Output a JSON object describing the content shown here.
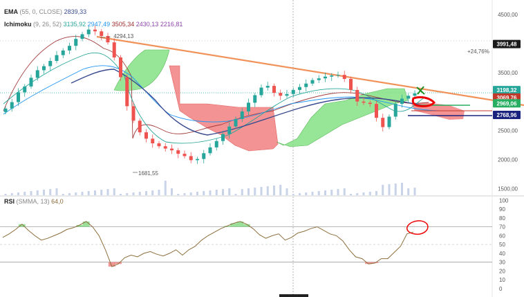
{
  "indicators": {
    "ema": {
      "name": "EMA",
      "params": "(55, 0, CLOSE)",
      "value": "2839,33",
      "color": "#3a4c8f"
    },
    "ichimoku": {
      "name": "Ichimoku",
      "params": "(9, 26, 52)",
      "values": [
        {
          "text": "3135,92",
          "color": "#26a69a"
        },
        {
          "text": "2947,49",
          "color": "#2196f3"
        },
        {
          "text": "3505,34",
          "color": "#9c2b2b"
        },
        {
          "text": "2430,13",
          "color": "#8e44ad"
        },
        {
          "text": "2216,81",
          "color": "#8e44ad"
        }
      ]
    },
    "rsi": {
      "name": "RSI",
      "params": "(SMMA, 13)",
      "value": "64,0",
      "color": "#8d6e3c"
    }
  },
  "price_axis": {
    "ticks": [
      "4500,00",
      "4000,00",
      "3500,00",
      "3000,00",
      "2500,00",
      "2000,00",
      "1500,00"
    ]
  },
  "price_tags": [
    {
      "text": "3991,48",
      "bg": "#1a1a1a"
    },
    {
      "text": "3198,32",
      "bg": "#26a69a"
    },
    {
      "text": "3069,76",
      "bg": "#c0392b"
    },
    {
      "text": "2969,06",
      "bg": "#27ae60"
    },
    {
      "text": "2768,96",
      "bg": "#1a237e"
    }
  ],
  "annotations": {
    "high": "4294,13",
    "low": "1681,55",
    "pct": "+24,76%"
  },
  "rsi_axis": {
    "ticks": [
      "100",
      "90",
      "80",
      "70",
      "60",
      "50",
      "40",
      "30",
      "20",
      "10",
      "0"
    ]
  },
  "chart_data": {
    "type": "candlestick",
    "ylim": [
      1350,
      4750
    ],
    "close": [
      2880,
      2990,
      3160,
      3260,
      3410,
      3540,
      3610,
      3700,
      3800,
      3880,
      3960,
      4080,
      4160,
      4240,
      4210,
      4130,
      4020,
      3760,
      3420,
      2920,
      2670,
      2470,
      2360,
      2280,
      2230,
      2190,
      2160,
      2100,
      2060,
      1990,
      2010,
      2110,
      2210,
      2320,
      2440,
      2570,
      2700,
      2830,
      2980,
      3110,
      3240,
      3270,
      3150,
      3100,
      3130,
      3200,
      3250,
      3310,
      3370,
      3400,
      3430,
      3450,
      3460,
      3390,
      3200,
      3000,
      2980,
      2960,
      2720,
      2560,
      2740,
      2960,
      3050,
      3100,
      3140
    ],
    "annotations": [
      "4294,13",
      "1681,55",
      "+24,76%"
    ],
    "rsi": {
      "values": [
        58,
        62,
        67,
        73,
        66,
        60,
        55,
        57,
        60,
        63,
        67,
        69,
        72,
        76,
        70,
        60,
        44,
        25,
        28,
        35,
        38,
        36,
        40,
        42,
        39,
        37,
        40,
        44,
        38,
        44,
        48,
        55,
        60,
        64,
        68,
        71,
        74,
        76,
        73,
        68,
        61,
        57,
        60,
        62,
        55,
        58,
        63,
        65,
        68,
        70,
        66,
        62,
        60,
        54,
        44,
        36,
        34,
        28,
        29,
        34,
        34,
        41,
        48,
        62,
        64
      ]
    }
  }
}
